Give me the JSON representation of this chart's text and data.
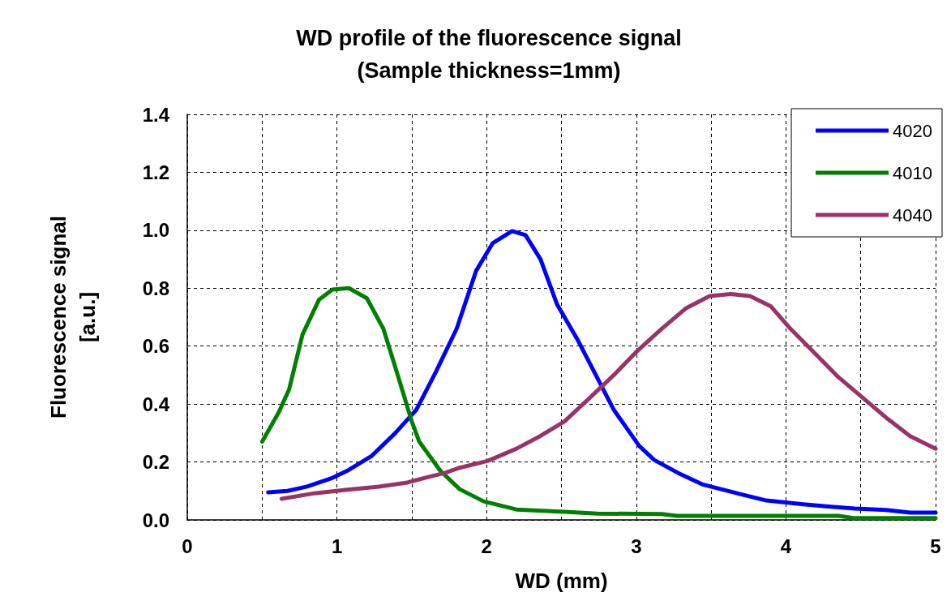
{
  "chart_data": {
    "type": "line",
    "title": "WD profile of the fluorescence signal\n(Sample thickness=1mm)",
    "xlabel": "WD (mm)",
    "ylabel": "Fluorescence signal\n[a.u.]",
    "xlim": [
      0,
      5
    ],
    "xticks": [
      0,
      {
        "value": 0.5,
        "label": null
      },
      1,
      {
        "value": 1.5,
        "label": null
      },
      2,
      {
        "value": 2.5,
        "label": null
      },
      3,
      {
        "value": 3.5,
        "label": null
      },
      4,
      {
        "value": 4.5,
        "label": null
      },
      5
    ],
    "ylim": [
      0,
      1.4
    ],
    "yticks": [
      {
        "value": 0,
        "label": "0.0"
      },
      0.2,
      0.4,
      0.6,
      0.8,
      {
        "value": 1,
        "label": "1.0"
      },
      1.2,
      1.4
    ],
    "grid": true,
    "legend": "top right",
    "marker": "none",
    "line_style": "solid",
    "series": [
      {
        "name": "4020",
        "color": "#0000ff",
        "x": [
          0.54,
          0.67,
          0.8,
          0.96,
          1.07,
          1.23,
          1.39,
          1.53,
          1.66,
          1.8,
          1.93,
          2.04,
          2.17,
          2.26,
          2.36,
          2.47,
          2.61,
          2.72,
          2.85,
          3.02,
          3.12,
          3.28,
          3.44,
          3.71,
          3.87,
          4.13,
          4.24,
          4.46,
          4.67,
          4.83,
          5.0
        ],
        "values": [
          0.095,
          0.1,
          0.115,
          0.143,
          0.17,
          0.22,
          0.3,
          0.38,
          0.51,
          0.66,
          0.86,
          0.955,
          0.997,
          0.983,
          0.9,
          0.745,
          0.62,
          0.51,
          0.38,
          0.255,
          0.207,
          0.162,
          0.123,
          0.087,
          0.067,
          0.053,
          0.048,
          0.039,
          0.034,
          0.025,
          0.025
        ]
      },
      {
        "name": "4010",
        "color": "#008000",
        "x": [
          0.5,
          0.61,
          0.68,
          0.77,
          0.88,
          0.97,
          1.08,
          1.2,
          1.31,
          1.4,
          1.5,
          1.55,
          1.69,
          1.82,
          1.98,
          2.2,
          2.52,
          2.74,
          3.17,
          3.27,
          4.35,
          4.46,
          5.0
        ],
        "values": [
          0.27,
          0.37,
          0.45,
          0.64,
          0.76,
          0.795,
          0.8,
          0.765,
          0.66,
          0.51,
          0.34,
          0.27,
          0.17,
          0.106,
          0.064,
          0.036,
          0.028,
          0.022,
          0.02,
          0.014,
          0.014,
          0.006,
          0.006
        ]
      },
      {
        "name": "4040",
        "color": "#993366",
        "x": [
          0.63,
          0.85,
          1.07,
          1.28,
          1.47,
          1.61,
          1.72,
          1.82,
          2.01,
          2.2,
          2.36,
          2.52,
          2.68,
          2.85,
          3.01,
          3.17,
          3.33,
          3.49,
          3.63,
          3.76,
          3.9,
          4.03,
          4.19,
          4.35,
          4.51,
          4.67,
          4.83,
          5.0
        ],
        "values": [
          0.073,
          0.092,
          0.104,
          0.115,
          0.129,
          0.148,
          0.162,
          0.18,
          0.204,
          0.246,
          0.29,
          0.34,
          0.417,
          0.5,
          0.585,
          0.66,
          0.73,
          0.773,
          0.78,
          0.773,
          0.737,
          0.66,
          0.577,
          0.493,
          0.423,
          0.353,
          0.289,
          0.246
        ]
      }
    ]
  }
}
